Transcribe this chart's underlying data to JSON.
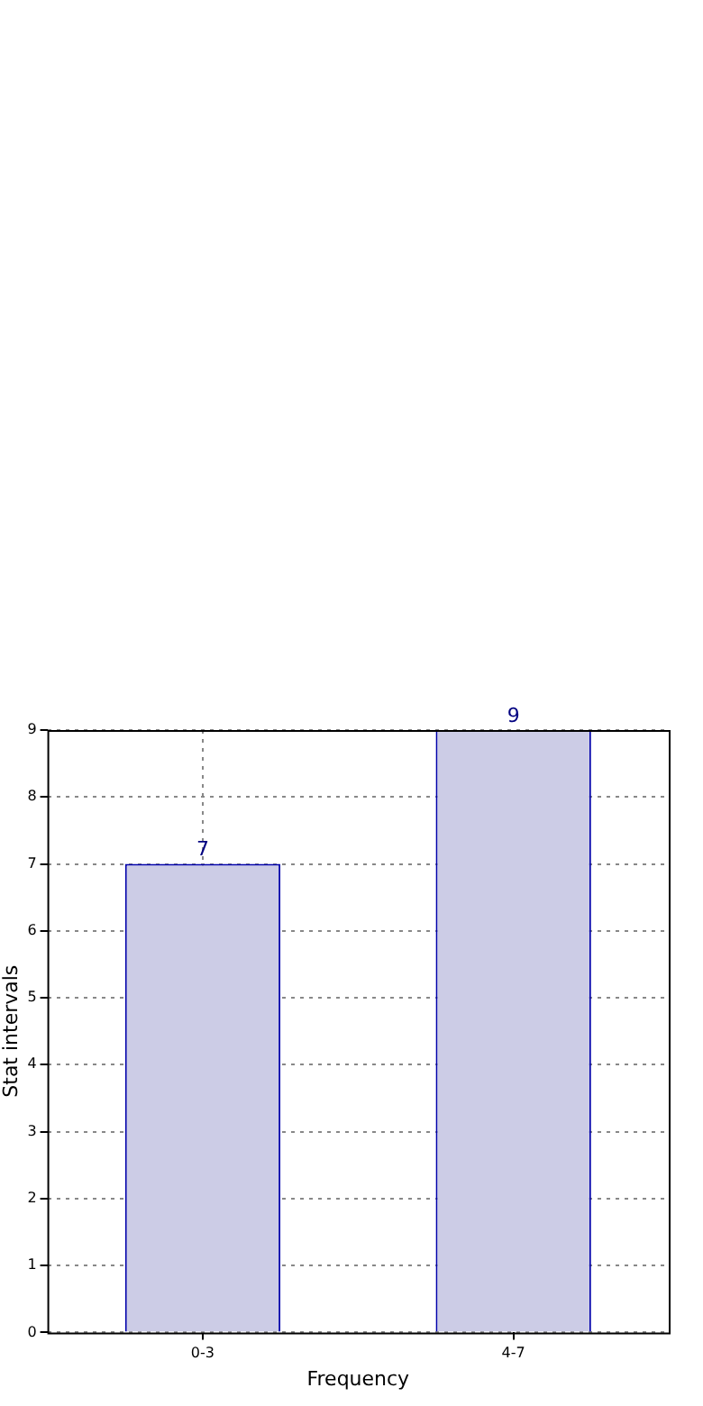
{
  "chart_data": {
    "type": "bar",
    "xlabel": "Frequency",
    "ylabel": "Stat intervals",
    "categories": [
      "0-3",
      "4-7"
    ],
    "values": [
      7,
      9
    ],
    "color": "#cccce6",
    "ylim": [
      0,
      9
    ],
    "yticks": [
      0,
      1,
      2,
      3,
      4,
      5,
      6,
      7,
      8,
      9
    ],
    "grid": true,
    "data_labels": true
  }
}
